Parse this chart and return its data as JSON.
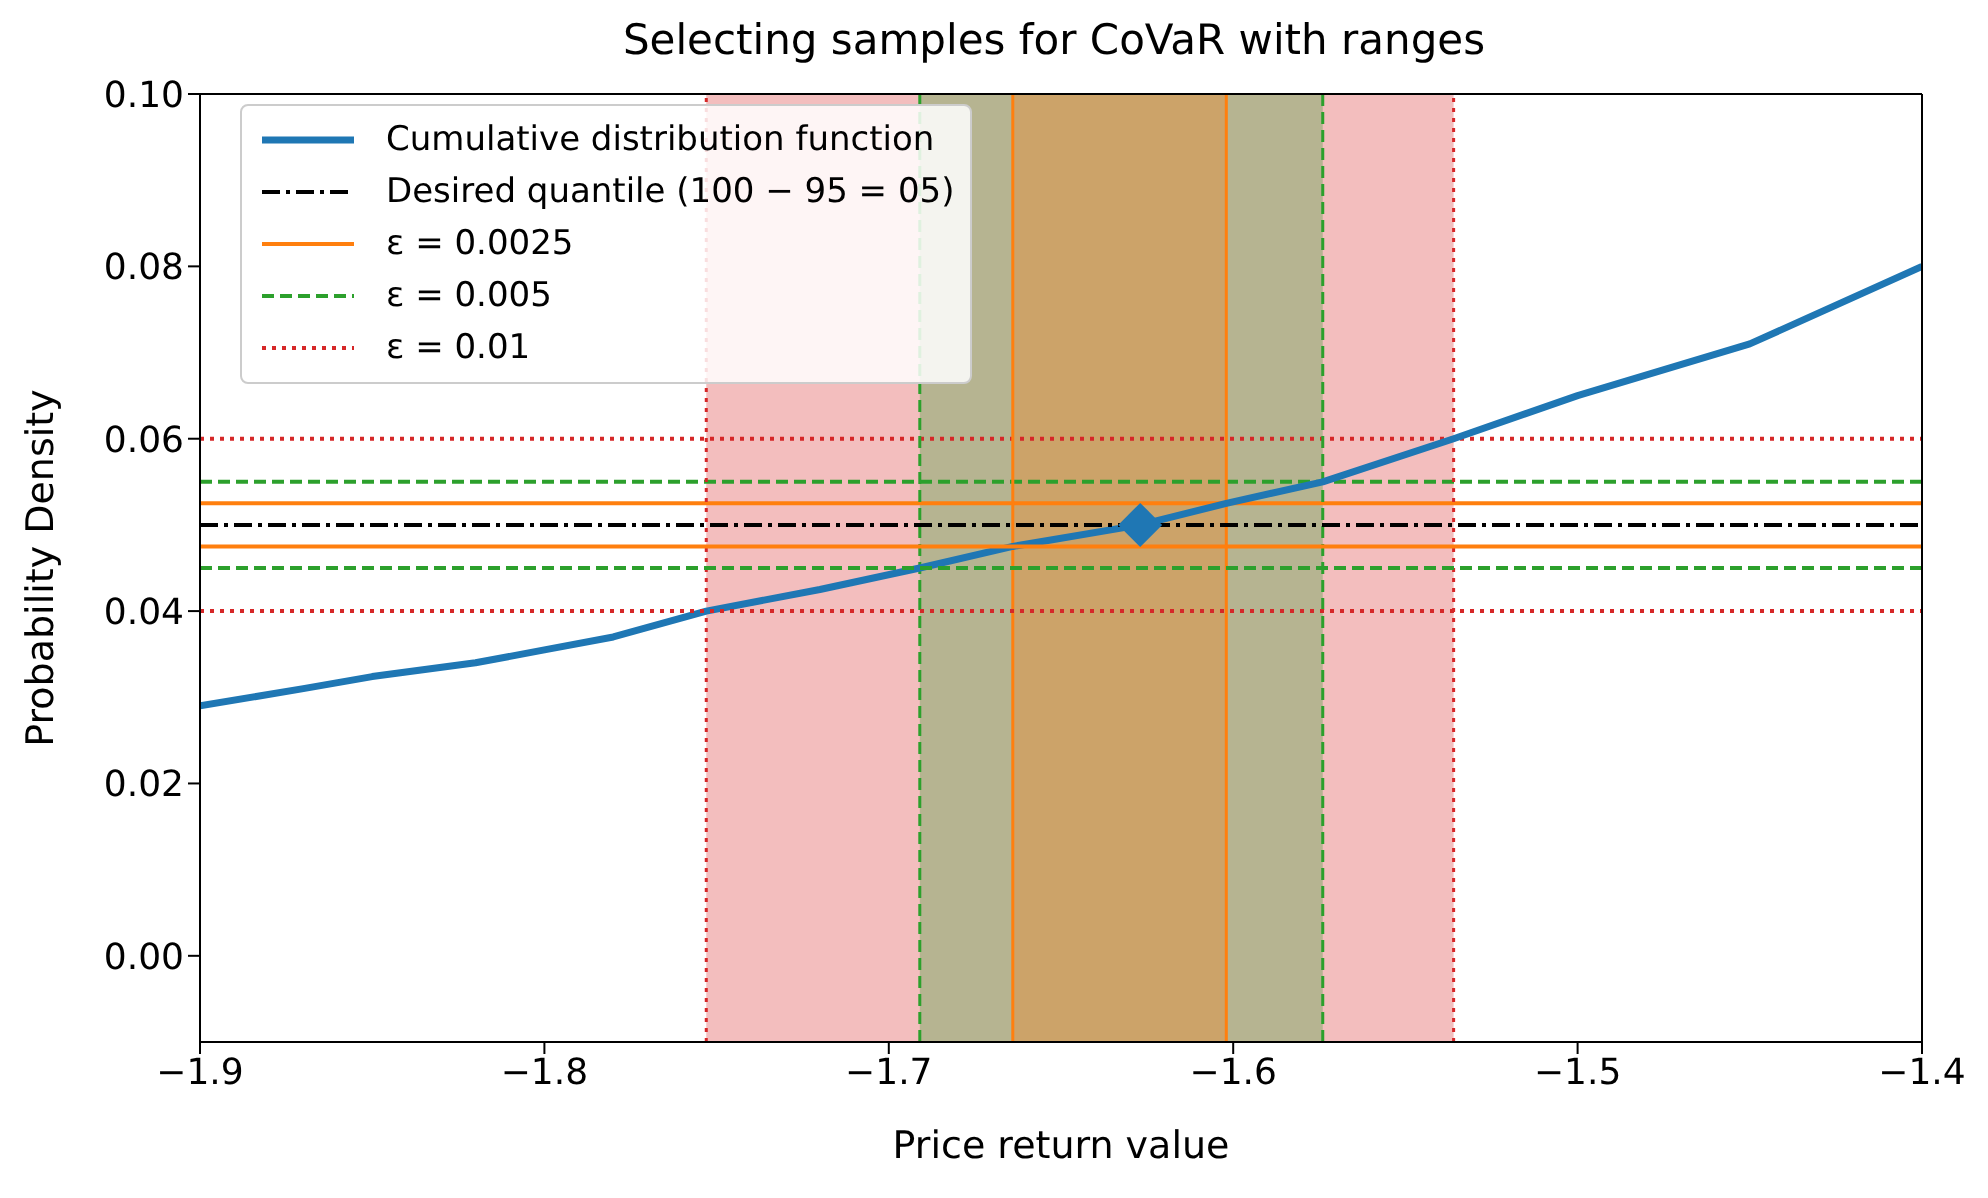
{
  "chart_data": {
    "type": "line",
    "title": "Selecting samples for CoVaR with ranges",
    "xlabel": "Price return value",
    "ylabel": "Probability Density",
    "xlim": [
      -1.9,
      -1.4
    ],
    "xticks": [
      {
        "value": -1.9,
        "label": "−1.9"
      },
      {
        "value": -1.8,
        "label": "−1.8"
      },
      {
        "value": -1.7,
        "label": "−1.7"
      },
      {
        "value": -1.6,
        "label": "−1.6"
      },
      {
        "value": -1.5,
        "label": "−1.5"
      },
      {
        "value": -1.4,
        "label": "−1.4"
      }
    ],
    "ylim": [
      -0.01,
      0.1
    ],
    "yticks": [
      {
        "value": 0,
        "label": "0.00"
      },
      0.02,
      0.04,
      0.06,
      0.08,
      {
        "value": 0.1,
        "label": "0.10"
      }
    ],
    "legend": "top left",
    "series": [
      {
        "name": "Cumulative distribution function",
        "color": "#1f77b4",
        "line_style": "solid",
        "x": [
          -1.9,
          -1.87,
          -1.85,
          -1.82,
          -1.8,
          -1.78,
          -1.753,
          -1.72,
          -1.691,
          -1.664,
          -1.627,
          -1.602,
          -1.574,
          -1.536,
          -1.5,
          -1.45,
          -1.4
        ],
        "values": [
          0.029,
          0.031,
          0.0324,
          0.034,
          0.0355,
          0.037,
          0.04,
          0.0425,
          0.045,
          0.0475,
          0.05,
          0.0525,
          0.055,
          0.06,
          0.065,
          0.071,
          0.08
        ]
      },
      {
        "name": "Desired quantile (100 − 95 = 05)",
        "color": "#000000",
        "line_style": "dashdot",
        "x": [
          -1.9,
          -1.4
        ],
        "values": [
          0.05,
          0.05
        ]
      },
      {
        "name": "ε = 0.0025",
        "color": "#ff7f0e",
        "line_style": "solid",
        "x": [
          -1.9,
          -1.4
        ],
        "values": [
          0.0475,
          0.0475
        ]
      },
      {
        "name": "ε = 0.005",
        "color": "#2ca02c",
        "line_style": "dashed",
        "x": [
          -1.9,
          -1.4
        ],
        "values": [
          0.045,
          0.045
        ]
      },
      {
        "name": "ε = 0.01",
        "color": "#d62728",
        "line_style": "dotted",
        "x": [
          -1.9,
          -1.4
        ],
        "values": [
          0.04,
          0.04
        ]
      },
      {
        "type": "scatter",
        "color": "#1f77b4",
        "marker": "diamond",
        "x": [
          -1.627
        ],
        "values": [
          0.05
        ]
      }
    ],
    "ref_lines": [
      {
        "axis": "y",
        "value": 0.0525,
        "color": "#ff7f0e",
        "line_style": "solid"
      },
      {
        "axis": "y",
        "value": 0.055,
        "color": "#2ca02c",
        "line_style": "dashed"
      },
      {
        "axis": "y",
        "value": 0.06,
        "color": "#d62728",
        "line_style": "dotted"
      },
      {
        "axis": "x",
        "value": -1.753,
        "color": "#d62728",
        "line_style": "dotted"
      },
      {
        "axis": "x",
        "value": -1.536,
        "color": "#d62728",
        "line_style": "dotted"
      },
      {
        "axis": "x",
        "value": -1.691,
        "color": "#2ca02c",
        "line_style": "dashed"
      },
      {
        "axis": "x",
        "value": -1.574,
        "color": "#2ca02c",
        "line_style": "dashed"
      },
      {
        "axis": "x",
        "value": -1.664,
        "color": "#ff7f0e",
        "line_style": "solid"
      },
      {
        "axis": "x",
        "value": -1.602,
        "color": "#ff7f0e",
        "line_style": "solid"
      }
    ],
    "bands": [
      {
        "axis": "x",
        "from": -1.753,
        "to": -1.536,
        "color": "#d62728"
      },
      {
        "axis": "x",
        "from": -1.691,
        "to": -1.574,
        "color": "#2ca02c"
      },
      {
        "axis": "x",
        "from": -1.664,
        "to": -1.602,
        "color": "#ff7f0e"
      }
    ]
  }
}
